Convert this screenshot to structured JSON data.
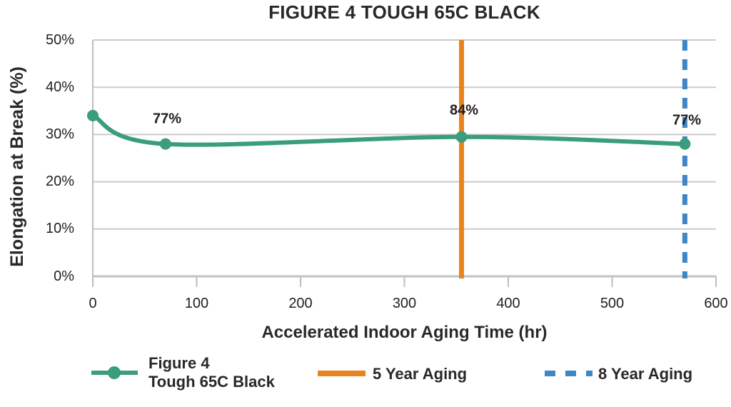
{
  "chart_data": {
    "type": "line",
    "title": "FIGURE 4 TOUGH 65C BLACK",
    "xlabel": "Accelerated Indoor Aging Time (hr)",
    "ylabel": "Elongation at Break (%)",
    "xlim": [
      0,
      600
    ],
    "ylim": [
      0,
      50
    ],
    "x_ticks": [
      0,
      100,
      200,
      300,
      400,
      500,
      600
    ],
    "x_tick_labels": [
      "0",
      "100",
      "200",
      "300",
      "400",
      "500",
      "600"
    ],
    "y_ticks": [
      0,
      10,
      20,
      30,
      40,
      50
    ],
    "y_tick_labels": [
      "0%",
      "10%",
      "20%",
      "30%",
      "40%",
      "50%"
    ],
    "grid": "horizontal-only",
    "series": [
      {
        "name": "Figure 4 Tough 65C Black",
        "color": "#3A9D7C",
        "marker": "circle",
        "x": [
          0,
          70,
          355,
          570
        ],
        "y": [
          34,
          28,
          29.5,
          28
        ]
      }
    ],
    "point_labels": [
      {
        "text": "77%",
        "x": 70,
        "y": 28
      },
      {
        "text": "84%",
        "x": 355,
        "y": 29.5
      },
      {
        "text": "77%",
        "x": 570,
        "y": 28
      }
    ],
    "vlines": [
      {
        "name": "5 Year Aging",
        "x": 355,
        "color": "#E8831F",
        "style": "solid"
      },
      {
        "name": "8 Year Aging",
        "x": 570,
        "color": "#3E86C6",
        "style": "dashed"
      }
    ],
    "legend": {
      "position": "bottom",
      "items": [
        {
          "label_line1": "Figure 4",
          "label_line2": "Tough 65C Black",
          "color": "#3A9D7C",
          "marker": "line-dot"
        },
        {
          "label_line1": "5 Year Aging",
          "color": "#E8831F",
          "marker": "solid-line"
        },
        {
          "label_line1": "8 Year Aging",
          "color": "#3E86C6",
          "marker": "dashed-line"
        }
      ]
    },
    "colors": {
      "grid": "#CBCBCB",
      "axis": "#BDBDBD",
      "text": "#262223"
    }
  }
}
